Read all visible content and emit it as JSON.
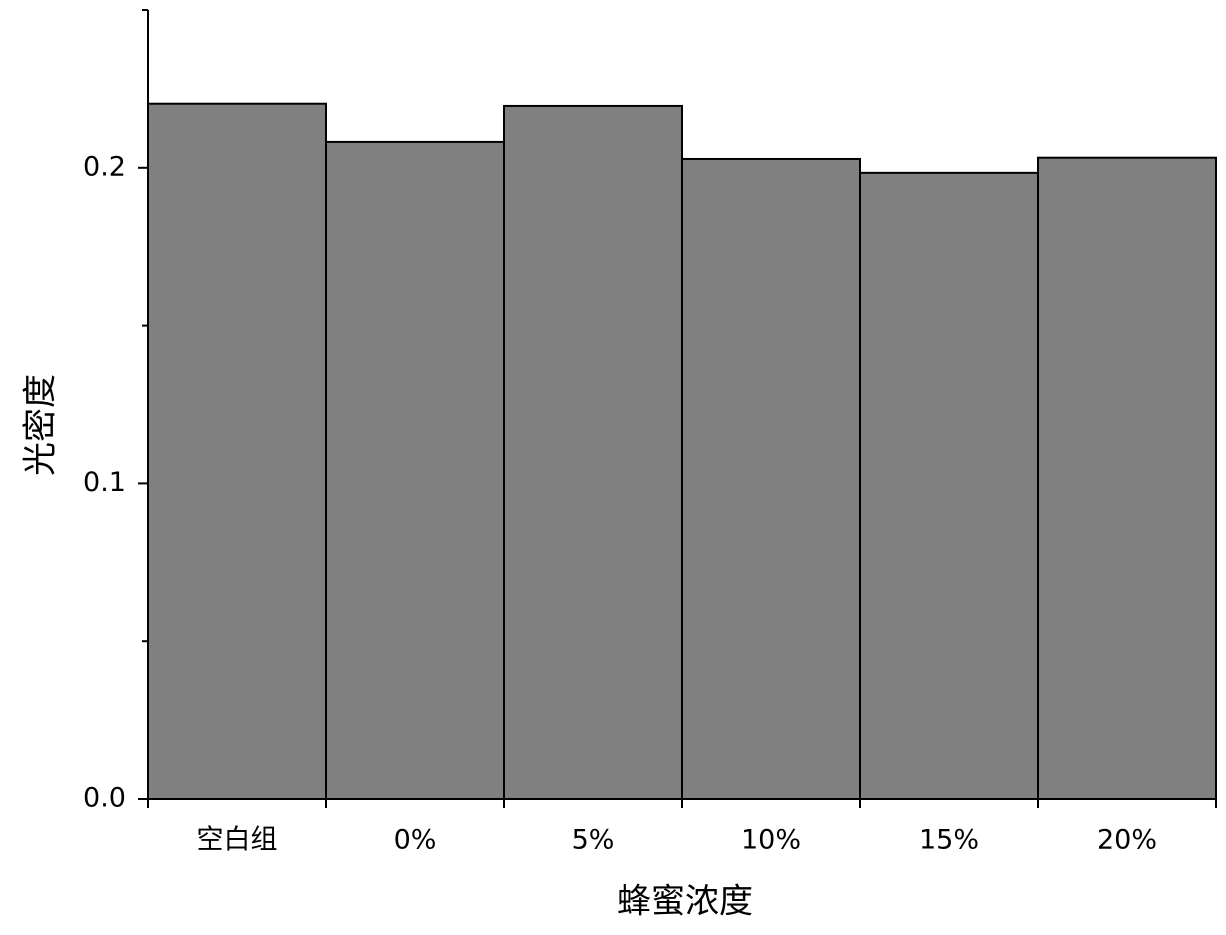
{
  "chart_data": {
    "type": "bar",
    "x_label": "蜂蜜浓度",
    "y_label": "光密度",
    "categories": [
      "空白组",
      "0%",
      "5%",
      "10%",
      "15%",
      "20%"
    ],
    "values": [
      0.2203,
      0.2082,
      0.2196,
      0.2028,
      0.1984,
      0.2032
    ],
    "color": "#808080",
    "ylim": [
      0,
      0.25
    ],
    "yticks": [
      {
        "value": 0,
        "label": "0.0"
      },
      0.1,
      0.2
    ],
    "yminorticks": [
      0.05,
      0.15,
      0.25
    ],
    "grid": false
  }
}
